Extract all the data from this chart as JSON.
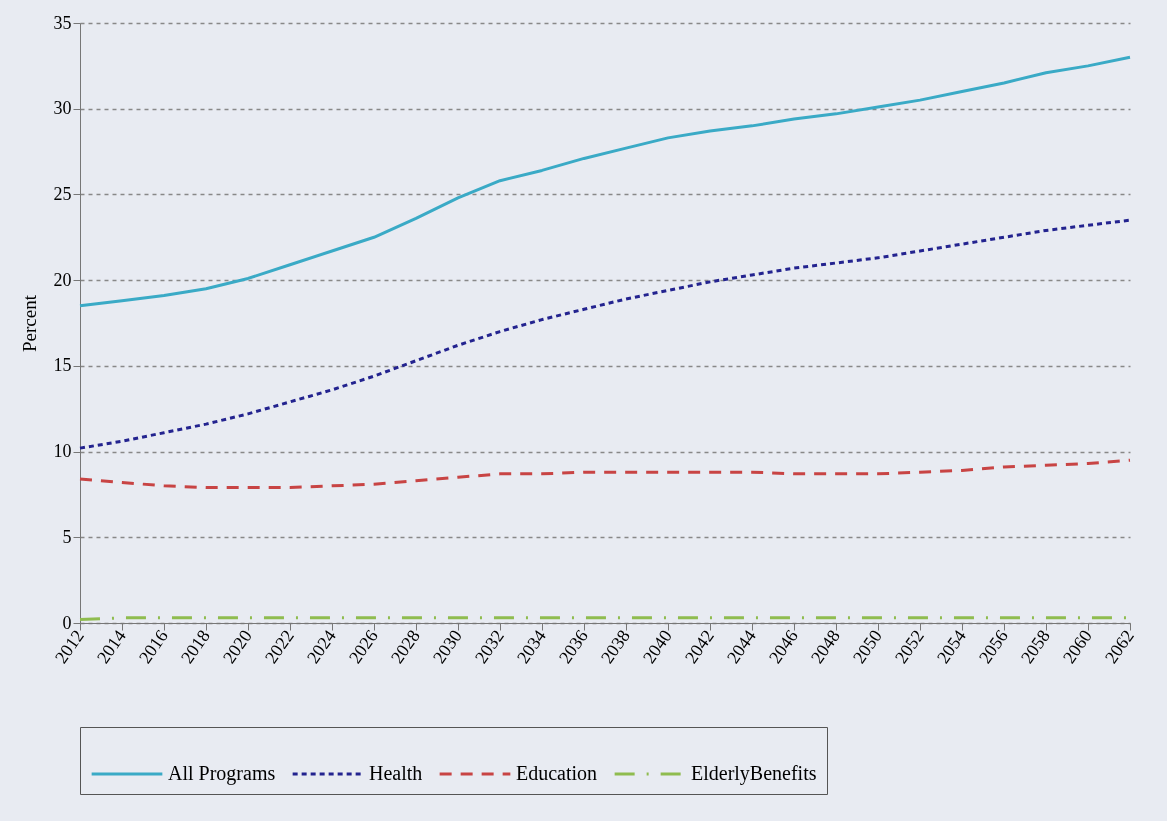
{
  "chart_data": {
    "type": "line",
    "ylabel": "Percent",
    "x": [
      2012,
      2014,
      2016,
      2018,
      2020,
      2022,
      2024,
      2026,
      2028,
      2030,
      2032,
      2034,
      2036,
      2038,
      2040,
      2042,
      2044,
      2046,
      2048,
      2050,
      2052,
      2054,
      2056,
      2058,
      2060,
      2062
    ],
    "series": [
      {
        "name": "All Programs",
        "color": "#3aaac6",
        "line_style": "solid",
        "values": [
          18.5,
          18.8,
          19.1,
          19.5,
          20.1,
          20.9,
          21.7,
          22.5,
          23.6,
          24.8,
          25.8,
          26.4,
          27.1,
          27.7,
          28.3,
          28.7,
          29.0,
          29.4,
          29.7,
          30.1,
          30.5,
          31.0,
          31.5,
          32.1,
          32.5,
          33.0
        ]
      },
      {
        "name": "Health",
        "color": "#23238f",
        "line_style": "dotted",
        "values": [
          10.2,
          10.6,
          11.1,
          11.6,
          12.2,
          12.9,
          13.6,
          14.4,
          15.3,
          16.2,
          17.0,
          17.7,
          18.3,
          18.9,
          19.4,
          19.9,
          20.3,
          20.7,
          21.0,
          21.3,
          21.7,
          22.1,
          22.5,
          22.9,
          23.2,
          23.5
        ]
      },
      {
        "name": "Education",
        "color": "#c84444",
        "line_style": "dashed",
        "values": [
          8.4,
          8.2,
          8.0,
          7.9,
          7.9,
          7.9,
          8.0,
          8.1,
          8.3,
          8.5,
          8.7,
          8.7,
          8.8,
          8.8,
          8.8,
          8.8,
          8.8,
          8.7,
          8.7,
          8.7,
          8.8,
          8.9,
          9.1,
          9.2,
          9.3,
          9.5
        ]
      },
      {
        "name": "ElderlyBenefits",
        "color": "#8fbc4f",
        "line_style": "dashdot",
        "values": [
          0.2,
          0.3,
          0.3,
          0.3,
          0.3,
          0.3,
          0.3,
          0.3,
          0.3,
          0.3,
          0.3,
          0.3,
          0.3,
          0.3,
          0.3,
          0.3,
          0.3,
          0.3,
          0.3,
          0.3,
          0.3,
          0.3,
          0.3,
          0.3,
          0.3,
          0.3
        ]
      }
    ],
    "xlim": [
      2012,
      2062
    ],
    "xticks": [
      2012,
      2014,
      2016,
      2018,
      2020,
      2022,
      2024,
      2026,
      2028,
      2030,
      2032,
      2034,
      2036,
      2038,
      2040,
      2042,
      2044,
      2046,
      2048,
      2050,
      2052,
      2054,
      2056,
      2058,
      2060,
      2062
    ],
    "ylim": [
      0,
      35
    ],
    "yticks": [
      0,
      5,
      10,
      15,
      20,
      25,
      30,
      35
    ],
    "grid": "y",
    "legend": "bottom",
    "marker": "none"
  }
}
